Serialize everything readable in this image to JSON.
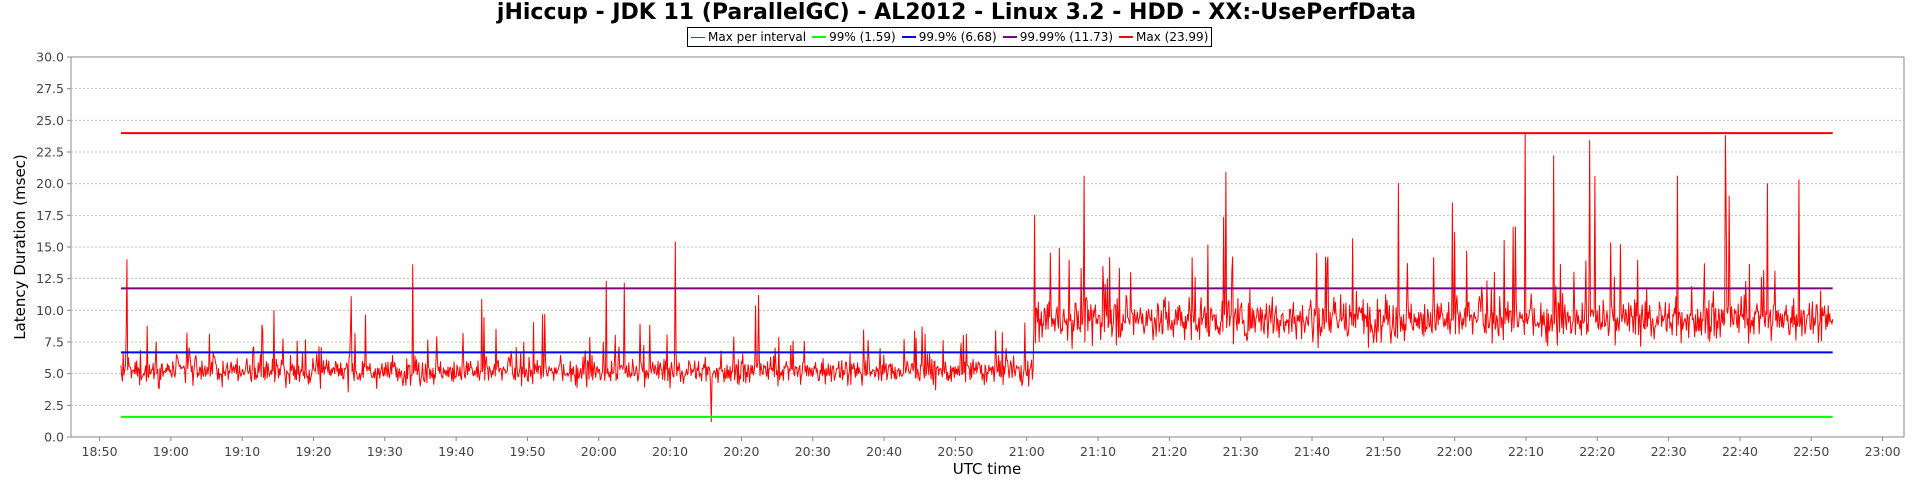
{
  "chart_data": {
    "type": "line",
    "title": "jHiccup - JDK 11 (ParallelGC) - AL2012 - Linux 3.2 - HDD - XX:-UsePerfData",
    "xlabel": "UTC time",
    "ylabel": "Latency Duration (msec)",
    "ylim": [
      0,
      30
    ],
    "xlim": [
      "18:46",
      "23:03"
    ],
    "y_ticks": [
      "0.0",
      "2.5",
      "5.0",
      "7.5",
      "10.0",
      "12.5",
      "15.0",
      "17.5",
      "20.0",
      "22.5",
      "25.0",
      "27.5",
      "30.0"
    ],
    "x_ticks": [
      "18:50",
      "19:00",
      "19:10",
      "19:20",
      "19:30",
      "19:40",
      "19:50",
      "20:00",
      "20:10",
      "20:20",
      "20:30",
      "20:40",
      "20:50",
      "21:00",
      "21:10",
      "21:20",
      "21:30",
      "21:40",
      "21:50",
      "22:00",
      "22:10",
      "22:20",
      "22:30",
      "22:40",
      "22:50",
      "23:00"
    ],
    "grid": true,
    "legend_position": "top-center",
    "series": [
      {
        "name": "Max per interval",
        "color": "#ff0000",
        "kind": "interval",
        "x_start": "18:53",
        "x_end": "22:53",
        "segments": [
          {
            "x_start": "18:53",
            "x_end": "21:01",
            "baseline": 5.2,
            "spread": 1.6,
            "min": 1.3,
            "max": 16.2
          },
          {
            "x_start": "21:01",
            "x_end": "22:53",
            "baseline": 9.3,
            "spread": 2.6,
            "min": 3.3,
            "max": 23.99
          }
        ],
        "spikes": [
          {
            "x": "18:54",
            "y": 16.2
          },
          {
            "x": "18:54",
            "y": 14.0
          },
          {
            "x": "19:34",
            "y": 13.6
          },
          {
            "x": "20:01",
            "y": 12.3
          },
          {
            "x": "20:11",
            "y": 15.4
          },
          {
            "x": "20:16",
            "y": 1.2
          },
          {
            "x": "21:01",
            "y": 17.5
          },
          {
            "x": "21:08",
            "y": 20.6
          },
          {
            "x": "21:28",
            "y": 20.9
          },
          {
            "x": "21:52",
            "y": 20.0
          },
          {
            "x": "22:10",
            "y": 23.99
          },
          {
            "x": "22:14",
            "y": 22.2
          },
          {
            "x": "22:19",
            "y": 23.4
          },
          {
            "x": "22:31",
            "y": 20.6
          },
          {
            "x": "22:38",
            "y": 23.8
          },
          {
            "x": "22:44",
            "y": 20.0
          },
          {
            "x": "22:48",
            "y": 20.3
          }
        ]
      },
      {
        "name": "99% (1.59)",
        "color": "#00ff00",
        "value": 1.59,
        "x_start": "18:53",
        "x_end": "22:53"
      },
      {
        "name": "99.9% (6.68)",
        "color": "#0000ff",
        "value": 6.68,
        "x_start": "18:53",
        "x_end": "22:53"
      },
      {
        "name": "99.99% (11.73)",
        "color": "#800080",
        "value": 11.73,
        "x_start": "18:53",
        "x_end": "22:53"
      },
      {
        "name": "Max (23.99)",
        "color": "#ff0000",
        "value": 23.99,
        "x_start": "18:53",
        "x_end": "22:53"
      }
    ]
  }
}
